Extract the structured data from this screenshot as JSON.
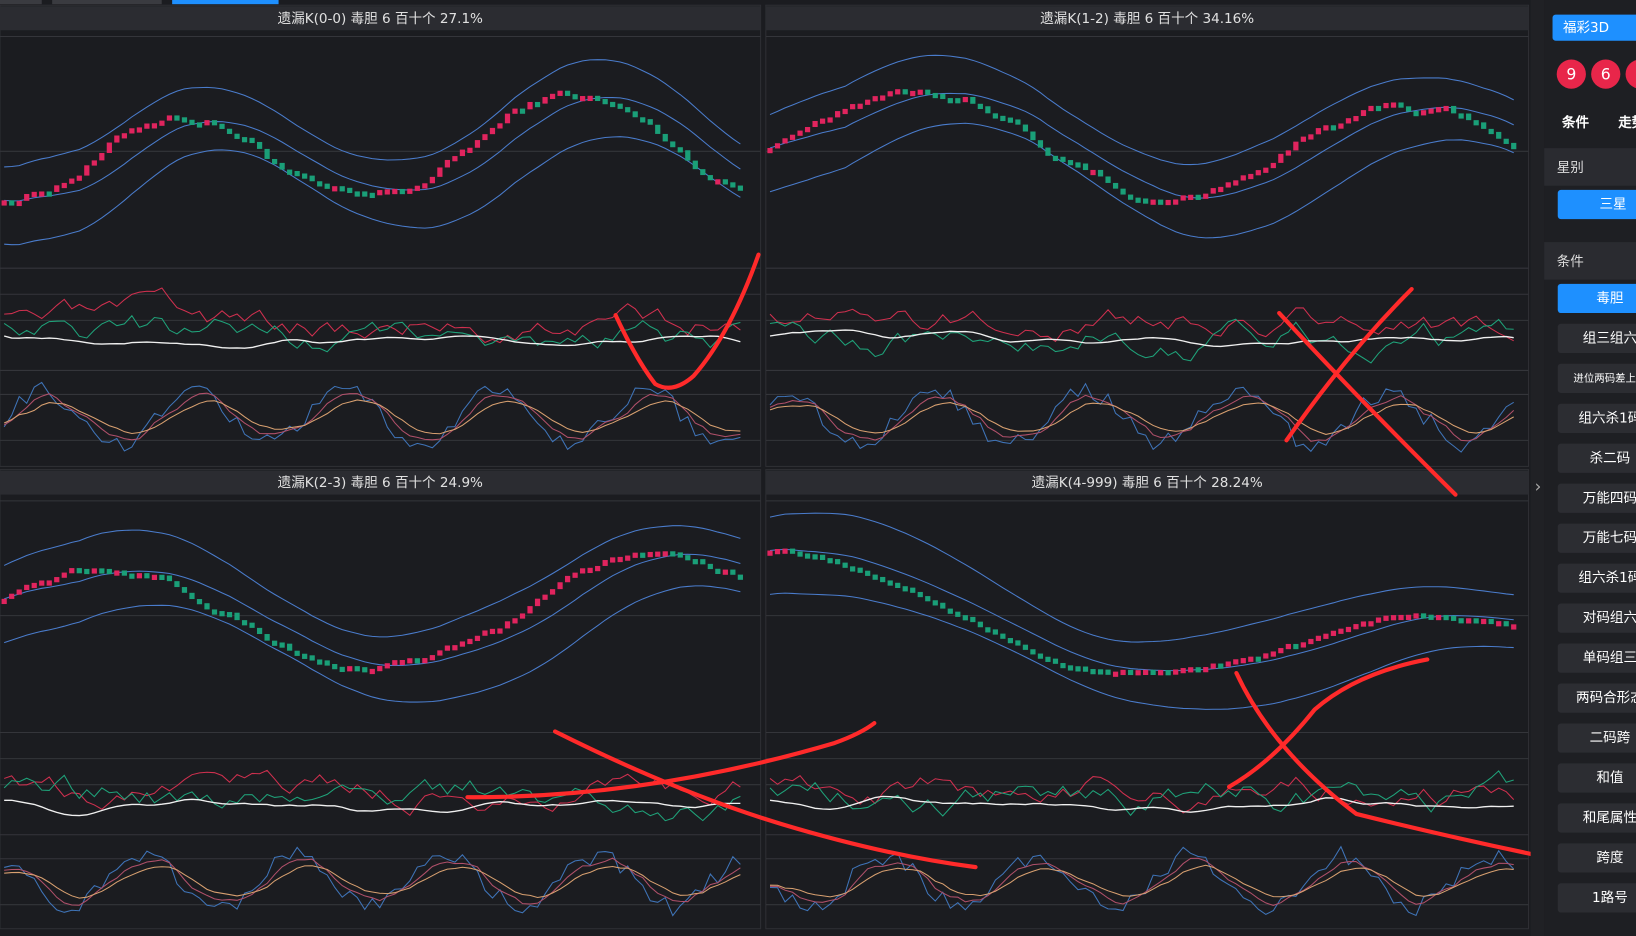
{
  "panels": [
    {
      "title": "遗漏K(0-0)  毒胆  6  百十个  27.1%"
    },
    {
      "title": "遗漏K(1-2)  毒胆  6  百十个  34.16%"
    },
    {
      "title": "遗漏K(2-3)  毒胆  6  百十个  24.9%"
    },
    {
      "title": "遗漏K(4-999)  毒胆  6  百十个  28.24%"
    }
  ],
  "sidebar": {
    "lottery": "福彩3D",
    "balls": [
      "9",
      "6"
    ],
    "tabs": [
      "条件",
      "走势"
    ],
    "star_section": "星别",
    "star_button": "三星",
    "condition_section": "条件",
    "conditions": [
      "毒胆",
      "组三组六",
      "进位两码差上期",
      "组六杀1码",
      "杀二码",
      "万能四码",
      "万能七码",
      "组六杀1码",
      "对码组六",
      "单码组三",
      "两码合形态",
      "二码跨",
      "和值",
      "和尾属性",
      "跨度",
      "1路号"
    ]
  }
}
